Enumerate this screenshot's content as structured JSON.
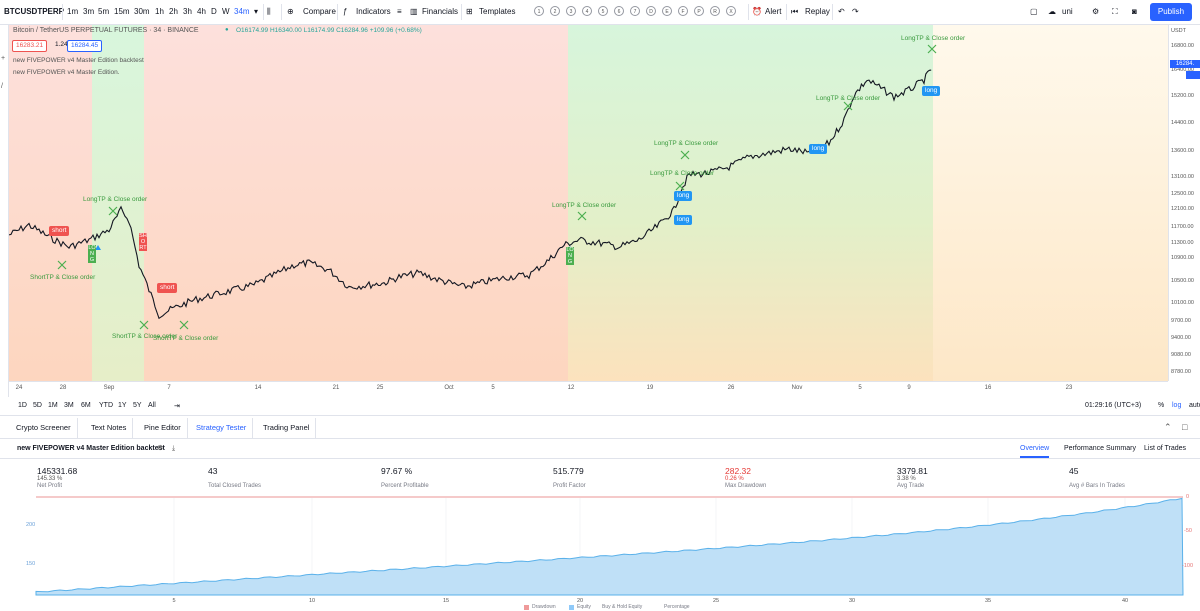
{
  "toolbar": {
    "symbol": "BTCUSDTPERP",
    "intervals": [
      "1m",
      "3m",
      "5m",
      "15m",
      "30m",
      "1h",
      "2h",
      "3h",
      "4h",
      "D",
      "W"
    ],
    "active_interval": "34m",
    "compare": "Compare",
    "indicators": "Indicators",
    "financials": "Financials",
    "templates": "Templates",
    "circle_letters": [
      "1",
      "2",
      "3",
      "4",
      "5",
      "6",
      "7",
      "D",
      "E",
      "F",
      "P",
      "R",
      "X"
    ],
    "alert": "Alert",
    "replay": "Replay",
    "layout_name": "uni",
    "publish": "Publish"
  },
  "chart": {
    "title": "Bitcoin / TetherUS PERPETUAL FUTURES · 34 · BINANCE",
    "ohlc": "O16174.99  H16340.00  L16174.99  C16284.96  +109.96 (+0.68%)",
    "bid": "16283.21",
    "spread": "1.24",
    "ask": "16284.45",
    "study1": "new FIVEPOWER v4 Master Edition backtest",
    "study2": "new FIVEPOWER v4 Master Edition.",
    "currency": "USDT",
    "price_ticks": [
      "16800.00",
      "16400.00",
      "15200.00",
      "14400.00",
      "13600.00",
      "13100.00",
      "12500.00",
      "12100.00",
      "11700.00",
      "11300.00",
      "10900.00",
      "10500.00",
      "10100.00",
      "9700.00",
      "9400.00",
      "9080.00",
      "8780.00"
    ],
    "last_price": "16284.",
    "time_ticks": [
      "24",
      "28",
      "Sep",
      "7",
      "14",
      "21",
      "25",
      "Oct",
      "5",
      "12",
      "19",
      "26",
      "Nov",
      "5",
      "9",
      "16",
      "23"
    ],
    "annotations": {
      "long_tp": "LongTP & Close order",
      "short_tp": "ShortTP & Close order",
      "short": "short",
      "long": "long",
      "long_v": "LONG",
      "short_v": "SHORT"
    },
    "colors": {
      "red_zone": "#fddcd8",
      "green_zone": "#d9f5dc",
      "orange_zone": "#fde6c8",
      "price": "#131722",
      "marker_green": "#4caf50",
      "marker_red": "#ef5350",
      "marker_blue": "#2196f3"
    }
  },
  "ranges": {
    "items": [
      "1D",
      "5D",
      "1M",
      "3M",
      "6M",
      "YTD",
      "1Y",
      "5Y",
      "All"
    ],
    "clock": "01:29:16 (UTC+3)",
    "percent": "%",
    "log": "log",
    "auto": "auto"
  },
  "tabs": [
    "Crypto Screener",
    "Text Notes",
    "Pine Editor",
    "Strategy Tester",
    "Trading Panel"
  ],
  "active_tab": "Strategy Tester",
  "strategy": {
    "name": "new FIVEPOWER v4 Master Edition backtest",
    "subtabs": [
      "Overview",
      "Performance Summary",
      "List of Trades"
    ],
    "active_subtab": "Overview",
    "metrics": [
      {
        "value": "145331.68",
        "sub": "145.33 %",
        "label": "Net Profit",
        "color": "#131722"
      },
      {
        "value": "43",
        "sub": "",
        "label": "Total Closed Trades",
        "color": "#131722"
      },
      {
        "value": "97.67 %",
        "sub": "",
        "label": "Percent Profitable",
        "color": "#131722"
      },
      {
        "value": "515.779",
        "sub": "",
        "label": "Profit Factor",
        "color": "#131722"
      },
      {
        "value": "282.32",
        "sub": "0.26 %",
        "label": "Max Drawdown",
        "color": "#e53935"
      },
      {
        "value": "3379.81",
        "sub": "3.38 %",
        "label": "Avg Trade",
        "color": "#131722"
      },
      {
        "value": "45",
        "sub": "",
        "label": "Avg # Bars In Trades",
        "color": "#131722"
      }
    ],
    "equity_left_ticks": [
      "200",
      "150"
    ],
    "equity_right_ticks": [
      "0",
      "-50",
      "-100"
    ],
    "equity_x_ticks": [
      "5",
      "10",
      "15",
      "20",
      "25",
      "30",
      "35",
      "40"
    ],
    "legend": [
      "Drawdown",
      "Equity",
      "Buy & Hold Equity",
      "Percentage"
    ]
  }
}
